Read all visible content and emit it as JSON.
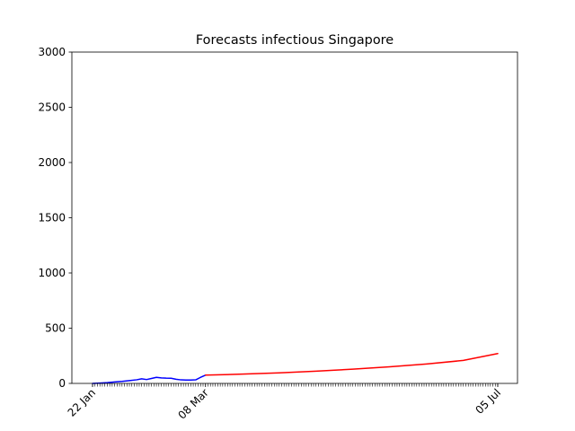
{
  "chart_data": {
    "type": "line",
    "title": "Forecasts infectious Singapore",
    "xlabel": "",
    "ylabel": "",
    "x_axis": {
      "start_date": "2020-01-22",
      "end_date": "2020-07-05",
      "tick_interval_days": 1,
      "labeled_ticks": [
        {
          "date": "2020-01-22",
          "label": "22 Jan"
        },
        {
          "date": "2020-03-08",
          "label": "08 Mar"
        },
        {
          "date": "2020-07-05",
          "label": "05 Jul"
        }
      ]
    },
    "ylim": [
      0,
      3000
    ],
    "y_ticks": [
      0,
      500,
      1000,
      1500,
      2000,
      2500,
      3000
    ],
    "grid": false,
    "legend": "none",
    "series": [
      {
        "color": "#0000ff",
        "points": [
          {
            "x": "2020-01-22",
            "y": 0
          },
          {
            "x": "2020-01-25",
            "y": 3
          },
          {
            "x": "2020-01-28",
            "y": 7
          },
          {
            "x": "2020-01-31",
            "y": 13
          },
          {
            "x": "2020-02-03",
            "y": 18
          },
          {
            "x": "2020-02-06",
            "y": 25
          },
          {
            "x": "2020-02-09",
            "y": 33
          },
          {
            "x": "2020-02-11",
            "y": 42
          },
          {
            "x": "2020-02-13",
            "y": 35
          },
          {
            "x": "2020-02-15",
            "y": 45
          },
          {
            "x": "2020-02-17",
            "y": 55
          },
          {
            "x": "2020-02-19",
            "y": 50
          },
          {
            "x": "2020-02-21",
            "y": 48
          },
          {
            "x": "2020-02-23",
            "y": 47
          },
          {
            "x": "2020-02-25",
            "y": 38
          },
          {
            "x": "2020-02-27",
            "y": 32
          },
          {
            "x": "2020-02-29",
            "y": 30
          },
          {
            "x": "2020-03-02",
            "y": 30
          },
          {
            "x": "2020-03-04",
            "y": 32
          },
          {
            "x": "2020-03-06",
            "y": 55
          },
          {
            "x": "2020-03-08",
            "y": 75
          }
        ]
      },
      {
        "color": "#ff0000",
        "points": [
          {
            "x": "2020-03-08",
            "y": 75
          },
          {
            "x": "2020-03-23",
            "y": 84
          },
          {
            "x": "2020-04-07",
            "y": 96
          },
          {
            "x": "2020-04-22",
            "y": 111
          },
          {
            "x": "2020-05-07",
            "y": 129
          },
          {
            "x": "2020-05-22",
            "y": 150
          },
          {
            "x": "2020-06-06",
            "y": 176
          },
          {
            "x": "2020-06-21",
            "y": 208
          },
          {
            "x": "2020-07-05",
            "y": 270
          }
        ]
      }
    ]
  }
}
